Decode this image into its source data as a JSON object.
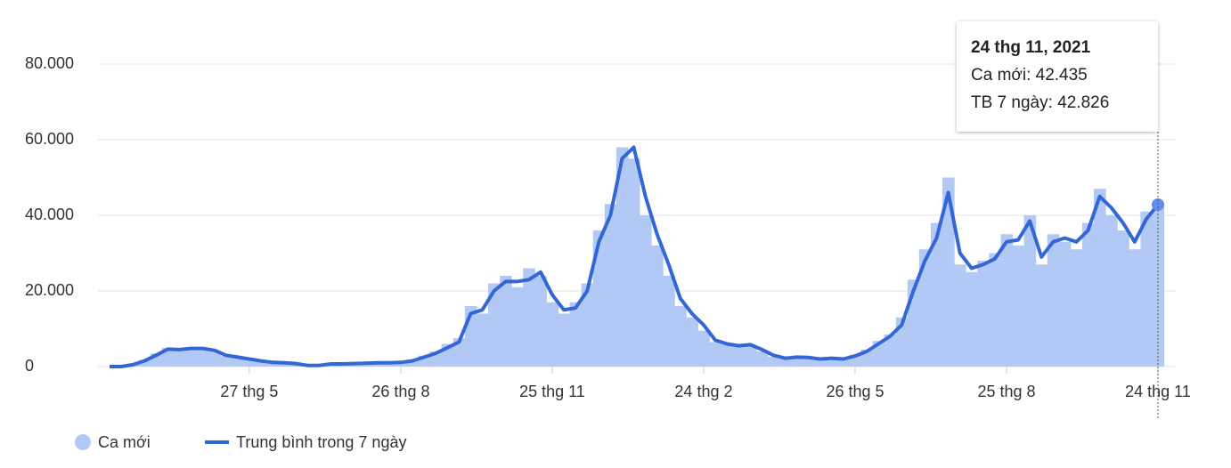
{
  "chart_data": {
    "type": "bar-line",
    "categories": [
      null,
      null,
      null,
      null,
      null,
      null,
      null,
      null,
      null,
      null,
      null,
      null,
      "27 thg 5",
      null,
      null,
      null,
      null,
      null,
      null,
      null,
      null,
      null,
      null,
      null,
      null,
      "26 thg 8",
      null,
      null,
      null,
      null,
      null,
      null,
      null,
      null,
      null,
      null,
      null,
      null,
      "25 thg 11",
      null,
      null,
      null,
      null,
      null,
      null,
      null,
      null,
      null,
      null,
      null,
      null,
      "24 thg 2",
      null,
      null,
      null,
      null,
      null,
      null,
      null,
      null,
      null,
      null,
      null,
      null,
      "26 thg 5",
      null,
      null,
      null,
      null,
      null,
      null,
      null,
      null,
      null,
      null,
      null,
      null,
      "25 thg 8",
      null,
      null,
      null,
      null,
      null,
      null,
      null,
      null,
      null,
      null,
      null,
      null,
      "24 thg 11"
    ],
    "series": [
      {
        "name": "Ca mới",
        "color": "#b3c9f5",
        "values": [
          0,
          0,
          600,
          1800,
          3500,
          5000,
          4200,
          5000,
          4700,
          4000,
          2800,
          2400,
          1900,
          1400,
          1000,
          900,
          700,
          200,
          400,
          800,
          600,
          900,
          800,
          1100,
          900,
          1200,
          1800,
          2900,
          4000,
          6000,
          7500,
          16000,
          14000,
          22000,
          24000,
          21000,
          26000,
          24000,
          17000,
          14000,
          17000,
          22000,
          36000,
          43000,
          58000,
          55000,
          40000,
          32000,
          24000,
          16000,
          13000,
          9500,
          6500,
          5800,
          5200,
          5500,
          4000,
          2600,
          2300,
          2600,
          2200,
          2100,
          2300,
          1900,
          3100,
          4500,
          6800,
          8500,
          13000,
          23000,
          31000,
          38000,
          50000,
          27000,
          25000,
          28000,
          30000,
          35000,
          32000,
          40000,
          27000,
          35000,
          33000,
          31000,
          38000,
          47000,
          40000,
          36000,
          31000,
          41000,
          42435
        ]
      },
      {
        "name": "Trung bình trong 7 ngày",
        "color": "#3367d6",
        "values": [
          0,
          0,
          500,
          1500,
          3000,
          4600,
          4500,
          4800,
          4800,
          4300,
          3000,
          2500,
          2000,
          1500,
          1100,
          1000,
          800,
          300,
          300,
          700,
          700,
          800,
          900,
          1000,
          1000,
          1100,
          1500,
          2500,
          3500,
          5000,
          6500,
          14000,
          15000,
          20000,
          22500,
          22500,
          23000,
          25000,
          19000,
          15000,
          15500,
          20000,
          33000,
          40000,
          55000,
          58000,
          45000,
          35000,
          27000,
          18000,
          14000,
          11000,
          7000,
          6000,
          5500,
          5800,
          4500,
          3000,
          2200,
          2500,
          2400,
          2000,
          2200,
          2000,
          2800,
          4000,
          6000,
          8000,
          11000,
          20000,
          28000,
          34000,
          46000,
          30000,
          26000,
          27000,
          28500,
          33000,
          33500,
          38500,
          29000,
          33000,
          34000,
          33000,
          36000,
          45000,
          42000,
          38000,
          33000,
          39000,
          42826
        ]
      }
    ],
    "ylim": [
      0,
      90000
    ],
    "yticks": [
      {
        "value": 0,
        "label": "0"
      },
      {
        "value": 20000,
        "label": "20.000"
      },
      {
        "value": 40000,
        "label": "40.000"
      },
      {
        "value": 60000,
        "label": "60.000"
      },
      {
        "value": 80000,
        "label": "80.000"
      }
    ],
    "grid": true,
    "tooltip": {
      "title": "24 thg 11, 2021",
      "lines": [
        "Ca mới: 42.435",
        "TB 7 ngày: 42.826"
      ]
    }
  }
}
